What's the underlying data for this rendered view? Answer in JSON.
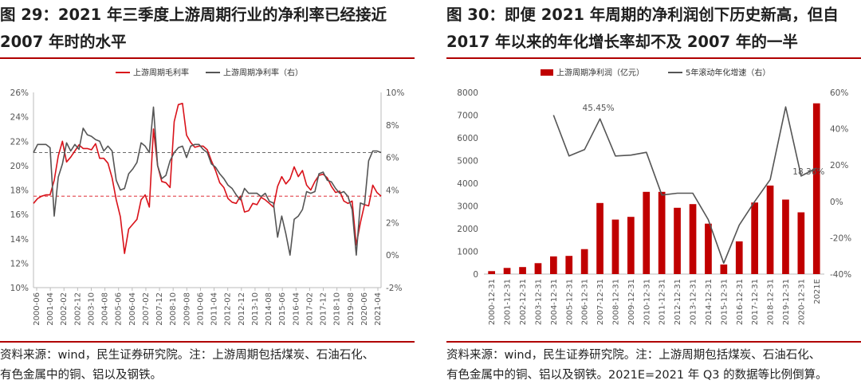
{
  "left": {
    "title_line1": "图 29：2021 年三季度上游周期行业的净利率已经接近",
    "title_line2": "2007 年时的水平",
    "note_line1": "资料来源：wind，民生证券研究院。注：上游周期包括煤炭、石油石化、",
    "note_line2": "有色金属中的铜、铝以及钢铁。",
    "colors": {
      "gross": "#d9121a",
      "net": "#555555",
      "rule": "#b00000"
    }
  },
  "right": {
    "title_line1": "图 30：即便 2021 年周期的净利润创下历史新高，但自",
    "title_line2": "2017 年以来的年化增长率却不及 2007 年的一半",
    "note_line1": "资料来源：wind，民生证券研究院。注：上游周期包括煤炭、石油石化、",
    "note_line2": "有色金属中的铜、铝以及钢铁。2021E=2021 年 Q3 的数据等比例倒算。",
    "colors": {
      "bar": "#c00000",
      "line": "#555555"
    }
  },
  "chart_data": [
    {
      "type": "line",
      "title": "2021 年三季度上游周期行业的净利率已经接近 2007 年时的水平",
      "legend_position": "top-center",
      "x_tick_labels": [
        "2000-06",
        "2001-04",
        "2002-02",
        "2002-12",
        "2003-10",
        "2004-08",
        "2005-06",
        "2006-04",
        "2007-02",
        "2007-12",
        "2008-10",
        "2009-08",
        "2010-06",
        "2011-04",
        "2012-02",
        "2012-12",
        "2013-10",
        "2014-08",
        "2015-06",
        "2016-04",
        "2017-02",
        "2017-12",
        "2018-10",
        "2019-08",
        "2020-06",
        "2021-04"
      ],
      "left_axis": {
        "ylim": [
          10,
          26
        ],
        "ticks": [
          "10%",
          "12%",
          "14%",
          "16%",
          "18%",
          "20%",
          "22%",
          "24%",
          "26%"
        ]
      },
      "right_axis": {
        "ylim": [
          -2,
          10
        ],
        "ticks": [
          "-2%",
          "0%",
          "2%",
          "4%",
          "6%",
          "8%",
          "10%"
        ]
      },
      "reference_lines": [
        {
          "axis": "left",
          "value": 17.5,
          "style": "dashed",
          "series": "上游周期毛利率"
        },
        {
          "axis": "right",
          "value": 6.3,
          "style": "dashed",
          "series": "上游周期净利率（右）"
        }
      ],
      "series": [
        {
          "name": "上游周期毛利率",
          "axis": "left",
          "x": [
            2000.5,
            2000.75,
            2001,
            2001.25,
            2001.5,
            2001.75,
            2002,
            2002.25,
            2002.5,
            2002.75,
            2003,
            2003.25,
            2003.5,
            2003.75,
            2004,
            2004.25,
            2004.5,
            2004.75,
            2005,
            2005.25,
            2005.5,
            2005.75,
            2006,
            2006.25,
            2006.5,
            2006.75,
            2007,
            2007.25,
            2007.5,
            2007.75,
            2008,
            2008.25,
            2008.5,
            2008.75,
            2009,
            2009.25,
            2009.5,
            2009.75,
            2010,
            2010.25,
            2010.5,
            2010.75,
            2011,
            2011.25,
            2011.5,
            2011.75,
            2012,
            2012.25,
            2012.5,
            2012.75,
            2013,
            2013.25,
            2013.5,
            2013.75,
            2014,
            2014.25,
            2014.5,
            2014.75,
            2015,
            2015.25,
            2015.5,
            2015.75,
            2016,
            2016.25,
            2016.5,
            2016.75,
            2017,
            2017.25,
            2017.5,
            2017.75,
            2018,
            2018.25,
            2018.5,
            2018.75,
            2019,
            2019.25,
            2019.5,
            2019.75,
            2020,
            2020.25,
            2020.5,
            2020.75,
            2021,
            2021.25,
            2021.5
          ],
          "values": [
            16.9,
            17.3,
            17.5,
            17.6,
            17.6,
            18.8,
            20.8,
            22.0,
            20.3,
            20.7,
            21.2,
            21.7,
            21.4,
            21.4,
            21.3,
            21.8,
            20.6,
            20.6,
            20.2,
            19.0,
            17.2,
            15.8,
            12.8,
            14.8,
            15.2,
            15.6,
            17.2,
            17.6,
            16.6,
            23.0,
            20.0,
            18.7,
            18.6,
            18.2,
            23.6,
            25.0,
            25.1,
            22.5,
            21.9,
            21.5,
            21.6,
            21.6,
            21.3,
            20.4,
            19.6,
            18.6,
            18.2,
            17.3,
            17.0,
            16.9,
            17.5,
            16.2,
            16.3,
            16.9,
            16.8,
            17.4,
            17.2,
            16.9,
            16.6,
            18.3,
            19.1,
            18.5,
            18.9,
            19.9,
            19.1,
            19.6,
            18.4,
            18.0,
            18.7,
            19.2,
            19.3,
            19.0,
            18.3,
            17.8,
            17.9,
            17.1,
            16.9,
            17.1,
            13.5,
            15.3,
            16.8,
            16.7,
            18.4,
            17.8,
            17.5
          ]
        },
        {
          "name": "上游周期净利率（右）",
          "axis": "right",
          "x": [
            2000.5,
            2000.75,
            2001,
            2001.25,
            2001.5,
            2001.75,
            2002,
            2002.25,
            2002.5,
            2002.75,
            2003,
            2003.25,
            2003.5,
            2003.75,
            2004,
            2004.25,
            2004.5,
            2004.75,
            2005,
            2005.25,
            2005.5,
            2005.75,
            2006,
            2006.25,
            2006.5,
            2006.75,
            2007,
            2007.25,
            2007.5,
            2007.75,
            2008,
            2008.25,
            2008.5,
            2008.75,
            2009,
            2009.25,
            2009.5,
            2009.75,
            2010,
            2010.25,
            2010.5,
            2010.75,
            2011,
            2011.25,
            2011.5,
            2011.75,
            2012,
            2012.25,
            2012.5,
            2012.75,
            2013,
            2013.25,
            2013.5,
            2013.75,
            2014,
            2014.25,
            2014.5,
            2014.75,
            2015,
            2015.25,
            2015.5,
            2015.75,
            2016,
            2016.25,
            2016.5,
            2016.75,
            2017,
            2017.25,
            2017.5,
            2017.75,
            2018,
            2018.25,
            2018.5,
            2018.75,
            2019,
            2019.25,
            2019.5,
            2019.75,
            2020,
            2020.25,
            2020.5,
            2020.75,
            2021,
            2021.25,
            2021.5
          ],
          "values": [
            6.3,
            6.8,
            6.8,
            6.8,
            6.6,
            2.4,
            4.8,
            5.6,
            6.9,
            6.4,
            6.8,
            6.5,
            7.8,
            7.4,
            7.3,
            7.1,
            7.0,
            6.4,
            6.7,
            6.4,
            4.6,
            4.0,
            4.1,
            5.0,
            5.3,
            5.7,
            6.9,
            6.7,
            6.3,
            9.1,
            5.5,
            4.7,
            4.9,
            5.8,
            6.3,
            6.6,
            6.7,
            6.0,
            6.7,
            6.8,
            6.8,
            6.5,
            6.3,
            5.6,
            5.4,
            5.0,
            4.7,
            4.3,
            4.1,
            3.7,
            3.4,
            4.1,
            3.8,
            3.8,
            3.8,
            3.6,
            3.8,
            3.3,
            3.2,
            1.1,
            2.4,
            1.3,
            0.0,
            2.2,
            2.4,
            2.8,
            3.9,
            3.8,
            3.9,
            5.0,
            5.1,
            4.6,
            4.5,
            4.1,
            3.8,
            3.9,
            3.6,
            2.8,
            0.0,
            3.2,
            3.1,
            5.8,
            6.4,
            6.4,
            6.3
          ]
        }
      ]
    },
    {
      "type": "bar",
      "title": "即便 2021 年周期的净利润创下历史新高，但自 2017 年以来的年化增长率却不及 2007 年的一半",
      "legend_position": "top-center",
      "categories": [
        "2000-12-31",
        "2001-12-31",
        "2002-12-31",
        "2003-12-31",
        "2004-12-31",
        "2005-12-31",
        "2006-12-31",
        "2007-12-31",
        "2008-12-31",
        "2009-12-31",
        "2010-12-31",
        "2011-12-31",
        "2012-12-31",
        "2013-12-31",
        "2014-12-31",
        "2015-12-31",
        "2016-12-31",
        "2017-12-31",
        "2018-12-31",
        "2019-12-31",
        "2020-12-31",
        "2021E"
      ],
      "left_axis": {
        "ylim": [
          0,
          8000
        ],
        "ticks": [
          "0",
          "1000",
          "2000",
          "3000",
          "4000",
          "5000",
          "6000",
          "7000",
          "8000"
        ]
      },
      "right_axis": {
        "ylim": [
          -40,
          60
        ],
        "ticks": [
          "-40%",
          "-20%",
          "0%",
          "20%",
          "40%",
          "60%"
        ]
      },
      "series": [
        {
          "name": "上游周期净利润（亿元）",
          "axis": "left",
          "type": "bar",
          "values": [
            130,
            270,
            310,
            480,
            780,
            800,
            1100,
            3130,
            2400,
            2520,
            3620,
            3620,
            2920,
            3080,
            2220,
            420,
            1440,
            3150,
            3900,
            3280,
            2720,
            7520
          ]
        },
        {
          "name": "5年滚动年化增速（右）",
          "axis": "right",
          "type": "line",
          "values": [
            null,
            null,
            null,
            null,
            47.5,
            25.0,
            28.5,
            45.45,
            25.0,
            25.5,
            27.0,
            3.5,
            4.5,
            4.5,
            -10.0,
            -34.0,
            -13.0,
            0.0,
            12.0,
            52.0,
            14.0,
            18.36
          ]
        }
      ],
      "annotations": [
        {
          "text": "45.45%",
          "category": "2007-12-31",
          "value": 45.45
        },
        {
          "text": "18.36%",
          "category": "2021E",
          "value": 18.36
        }
      ]
    }
  ]
}
